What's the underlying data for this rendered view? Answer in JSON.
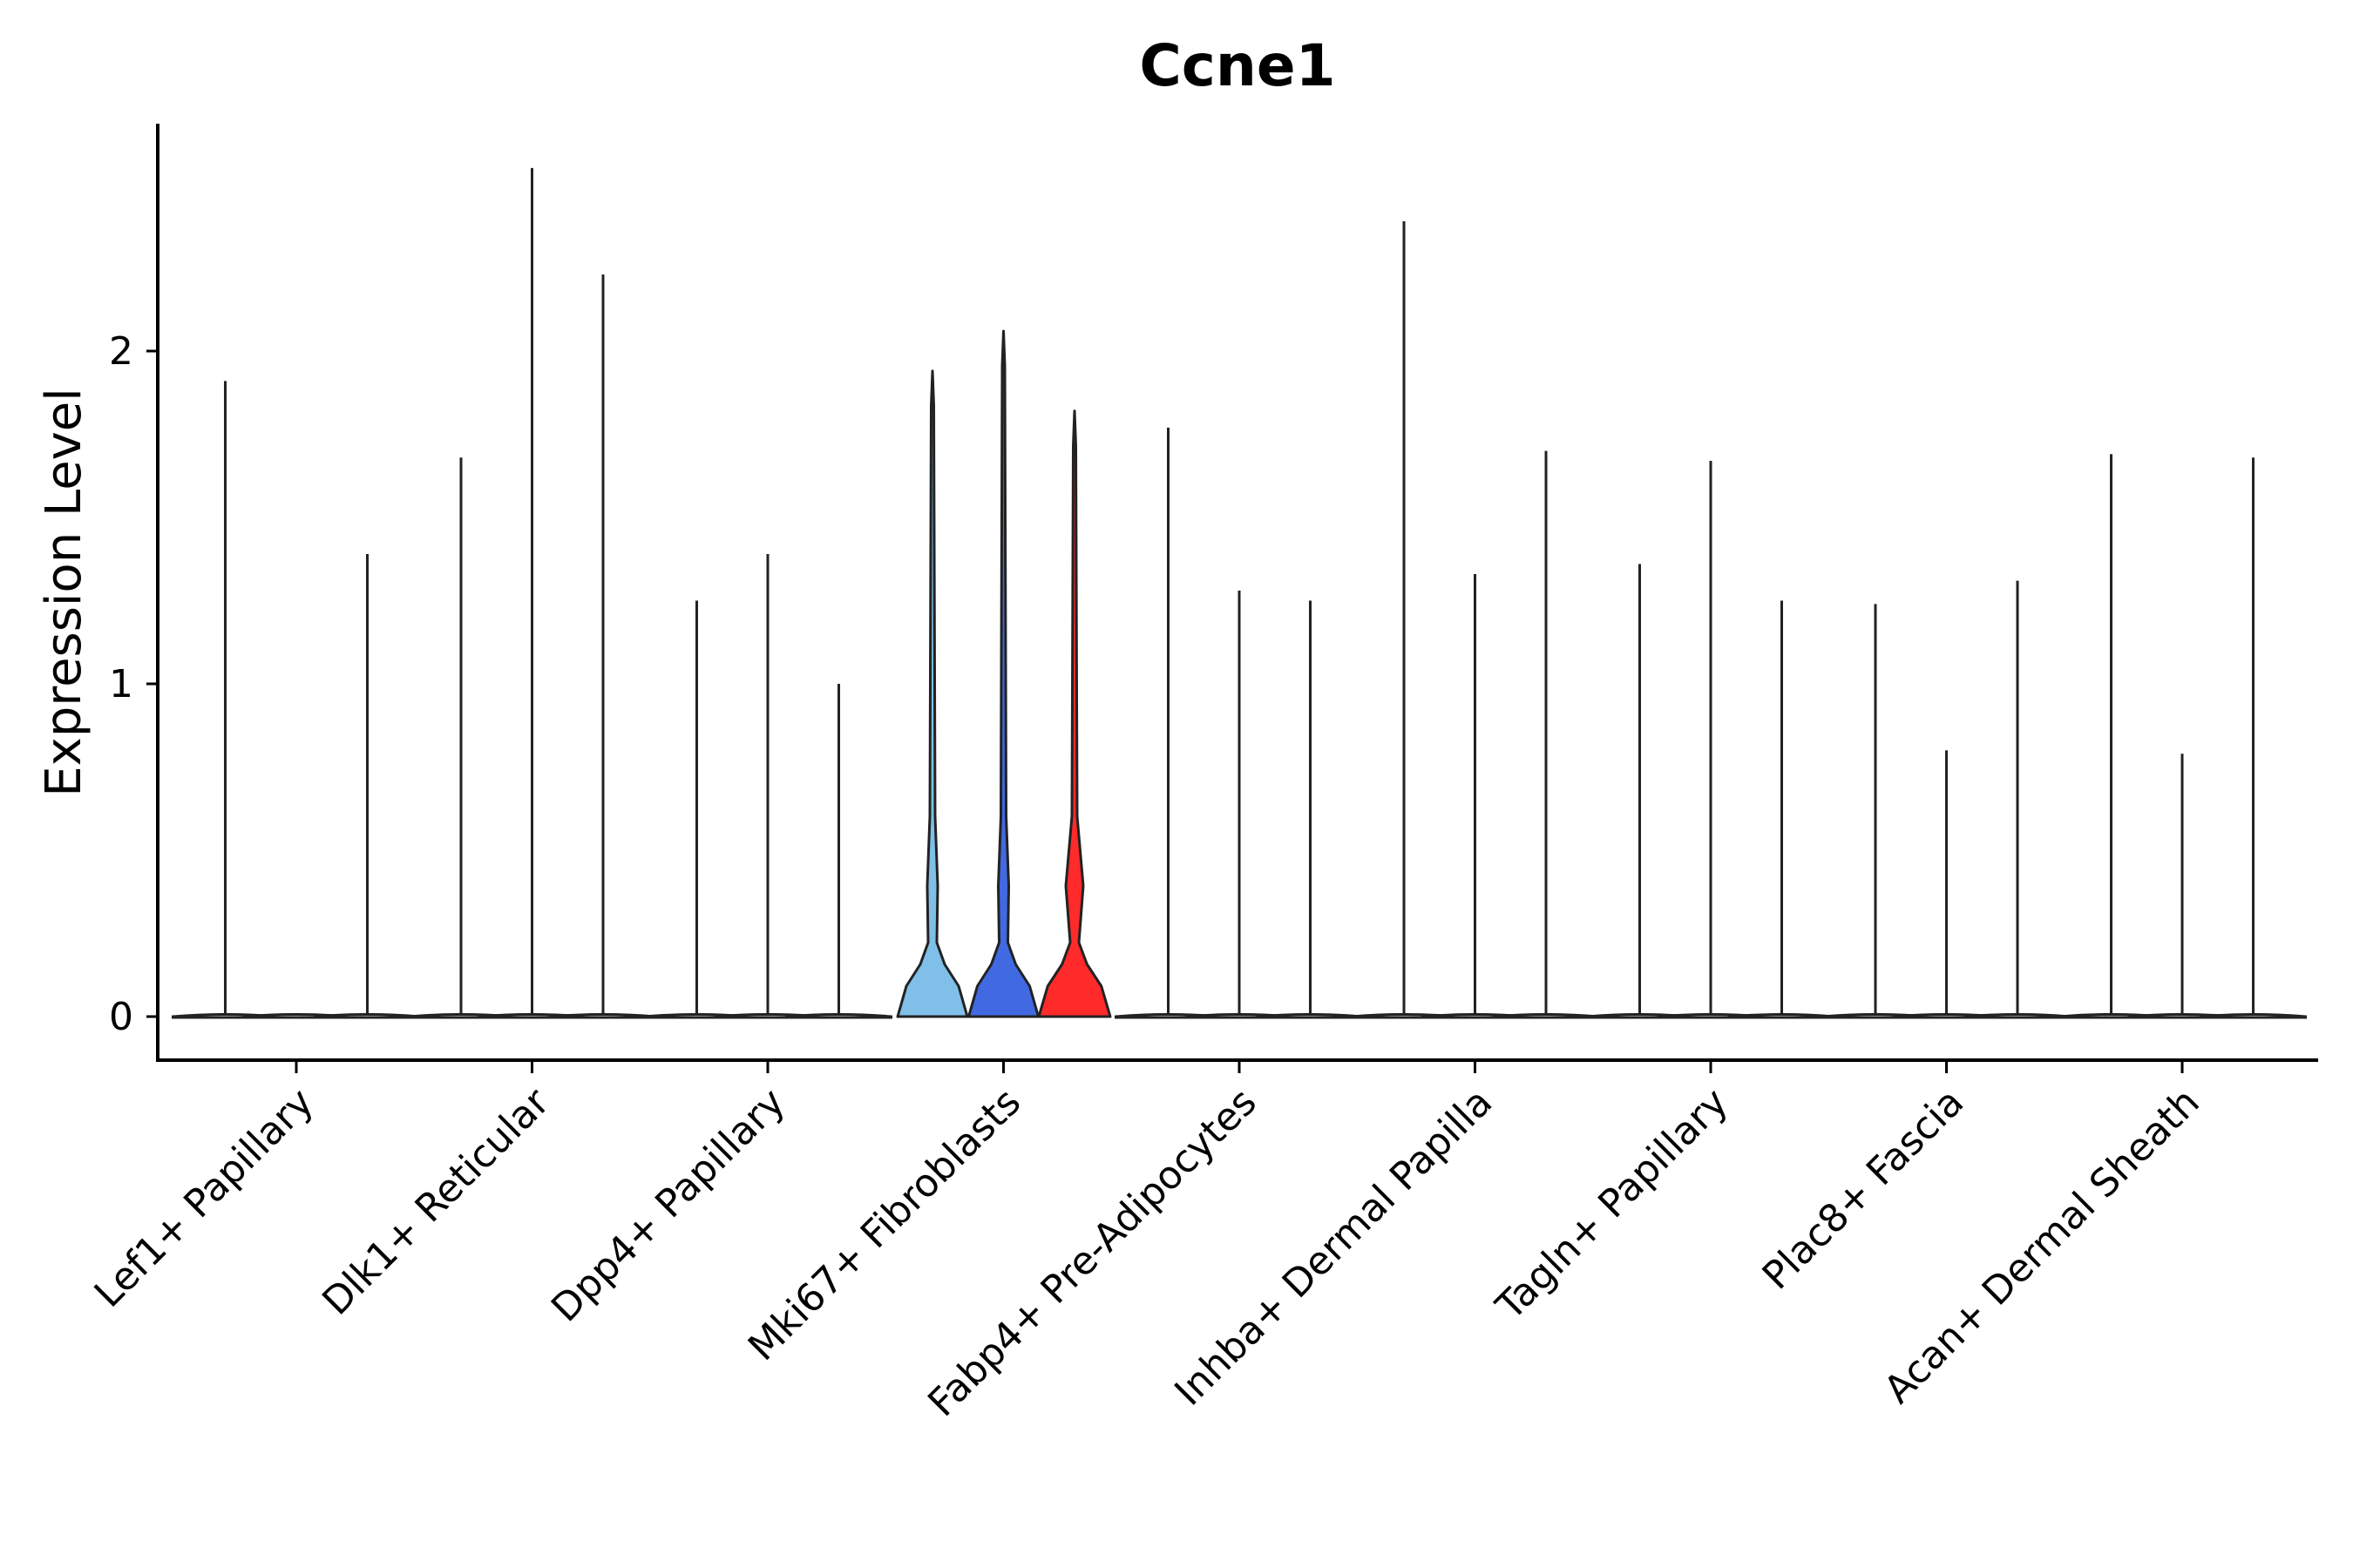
{
  "chart_data": {
    "type": "violin",
    "title": "Ccne1",
    "xlabel": "",
    "ylabel": "Expression Level",
    "ylim": [
      -0.13,
      2.68
    ],
    "yticks": [
      0,
      1,
      2
    ],
    "grid": false,
    "legend": "none",
    "categories": [
      "Lef1+ Papillary",
      "Dlk1+ Reticular",
      "Dpp4+ Papillary",
      "Mki67+ Fibroblasts",
      "Fabp4+ Pre-Adipocytes",
      "Inhba+ Dermal Papilla",
      "Tagln+ Papillary",
      "Plac8+ Fascia",
      "Acan+ Dermal Sheath"
    ],
    "violins": [
      {
        "group": "Lef1+ Papillary",
        "sub": 0,
        "max": 1.91,
        "fill": "#ffffff",
        "profile": "flat"
      },
      {
        "group": "Lef1+ Papillary",
        "sub": 1,
        "max": 0.0,
        "fill": "#ffffff",
        "profile": "flat"
      },
      {
        "group": "Lef1+ Papillary",
        "sub": 2,
        "max": 1.39,
        "fill": "#ffffff",
        "profile": "flat"
      },
      {
        "group": "Dlk1+ Reticular",
        "sub": 0,
        "max": 1.68,
        "fill": "#ffffff",
        "profile": "flat"
      },
      {
        "group": "Dlk1+ Reticular",
        "sub": 1,
        "max": 2.55,
        "fill": "#ffffff",
        "profile": "flat"
      },
      {
        "group": "Dlk1+ Reticular",
        "sub": 2,
        "max": 2.23,
        "fill": "#ffffff",
        "profile": "flat"
      },
      {
        "group": "Dpp4+ Papillary",
        "sub": 0,
        "max": 1.25,
        "fill": "#ffffff",
        "profile": "flat"
      },
      {
        "group": "Dpp4+ Papillary",
        "sub": 1,
        "max": 1.39,
        "fill": "#ffffff",
        "profile": "flat"
      },
      {
        "group": "Dpp4+ Papillary",
        "sub": 2,
        "max": 1.0,
        "fill": "#ffffff",
        "profile": "flat"
      },
      {
        "group": "Mki67+ Fibroblasts",
        "sub": 0,
        "max": 1.94,
        "fill": "#7fbfe8",
        "profile": "wide"
      },
      {
        "group": "Mki67+ Fibroblasts",
        "sub": 1,
        "max": 2.06,
        "fill": "#4169e1",
        "profile": "wide"
      },
      {
        "group": "Mki67+ Fibroblasts",
        "sub": 2,
        "max": 1.82,
        "fill": "#ff2a2a",
        "profile": "wider"
      },
      {
        "group": "Fabp4+ Pre-Adipocytes",
        "sub": 0,
        "max": 1.77,
        "fill": "#ffffff",
        "profile": "flat"
      },
      {
        "group": "Fabp4+ Pre-Adipocytes",
        "sub": 1,
        "max": 1.28,
        "fill": "#ffffff",
        "profile": "flat"
      },
      {
        "group": "Fabp4+ Pre-Adipocytes",
        "sub": 2,
        "max": 1.25,
        "fill": "#ffffff",
        "profile": "flat"
      },
      {
        "group": "Inhba+ Dermal Papilla",
        "sub": 0,
        "max": 2.39,
        "fill": "#ffffff",
        "profile": "flat"
      },
      {
        "group": "Inhba+ Dermal Papilla",
        "sub": 1,
        "max": 1.33,
        "fill": "#ffffff",
        "profile": "flat"
      },
      {
        "group": "Inhba+ Dermal Papilla",
        "sub": 2,
        "max": 1.7,
        "fill": "#ffffff",
        "profile": "flat"
      },
      {
        "group": "Tagln+ Papillary",
        "sub": 0,
        "max": 1.36,
        "fill": "#ffffff",
        "profile": "flat"
      },
      {
        "group": "Tagln+ Papillary",
        "sub": 1,
        "max": 1.67,
        "fill": "#ffffff",
        "profile": "flat"
      },
      {
        "group": "Tagln+ Papillary",
        "sub": 2,
        "max": 1.25,
        "fill": "#ffffff",
        "profile": "flat"
      },
      {
        "group": "Plac8+ Fascia",
        "sub": 0,
        "max": 1.24,
        "fill": "#ffffff",
        "profile": "flat"
      },
      {
        "group": "Plac8+ Fascia",
        "sub": 1,
        "max": 0.8,
        "fill": "#ffffff",
        "profile": "flat"
      },
      {
        "group": "Plac8+ Fascia",
        "sub": 2,
        "max": 1.31,
        "fill": "#ffffff",
        "profile": "flat"
      },
      {
        "group": "Acan+ Dermal Sheath",
        "sub": 0,
        "max": 1.69,
        "fill": "#ffffff",
        "profile": "flat"
      },
      {
        "group": "Acan+ Dermal Sheath",
        "sub": 1,
        "max": 0.79,
        "fill": "#ffffff",
        "profile": "flat"
      },
      {
        "group": "Acan+ Dermal Sheath",
        "sub": 2,
        "max": 1.68,
        "fill": "#ffffff",
        "profile": "flat"
      }
    ]
  }
}
